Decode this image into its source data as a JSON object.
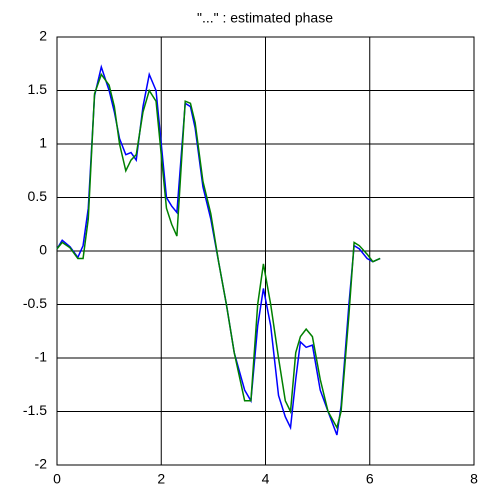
{
  "chart_data": {
    "type": "line",
    "title": "\"...\" : estimated phase",
    "x": [
      0,
      0.1,
      0.25,
      0.4,
      0.5,
      0.6,
      0.72,
      0.85,
      1.0,
      1.1,
      1.2,
      1.32,
      1.42,
      1.52,
      1.65,
      1.77,
      1.9,
      2.0,
      2.1,
      2.2,
      2.3,
      2.46,
      2.56,
      2.65,
      2.8,
      2.95,
      3.1,
      3.25,
      3.4,
      3.6,
      3.72,
      3.85,
      3.96,
      4.1,
      4.25,
      4.38,
      4.48,
      4.58,
      4.67,
      4.78,
      4.9,
      5.05,
      5.2,
      5.37,
      5.45,
      5.6,
      5.7,
      5.8,
      5.95,
      6.06,
      6.2
    ],
    "series": [
      {
        "color": "#0000ff",
        "values": [
          0.02,
          0.1,
          0.04,
          -0.06,
          0.05,
          0.4,
          1.45,
          1.72,
          1.5,
          1.3,
          1.05,
          0.9,
          0.92,
          0.85,
          1.35,
          1.65,
          1.5,
          1.0,
          0.5,
          0.42,
          0.36,
          1.38,
          1.35,
          1.15,
          0.6,
          0.3,
          -0.1,
          -0.5,
          -0.95,
          -1.3,
          -1.4,
          -0.7,
          -0.35,
          -0.7,
          -1.35,
          -1.55,
          -1.65,
          -1.2,
          -0.85,
          -0.9,
          -0.88,
          -1.3,
          -1.5,
          -1.72,
          -1.45,
          -0.5,
          0.05,
          0.02,
          -0.07,
          -0.1,
          -0.07
        ]
      },
      {
        "color": "#008000",
        "values": [
          0.02,
          0.08,
          0.03,
          -0.07,
          -0.07,
          0.3,
          1.47,
          1.65,
          1.55,
          1.35,
          1.0,
          0.75,
          0.85,
          0.9,
          1.3,
          1.5,
          1.4,
          0.9,
          0.4,
          0.25,
          0.14,
          1.4,
          1.38,
          1.2,
          0.65,
          0.35,
          -0.1,
          -0.5,
          -0.95,
          -1.4,
          -1.4,
          -0.5,
          -0.12,
          -0.5,
          -1.0,
          -1.4,
          -1.5,
          -0.95,
          -0.8,
          -0.73,
          -0.8,
          -1.2,
          -1.5,
          -1.65,
          -1.5,
          -0.6,
          0.08,
          0.05,
          -0.03,
          -0.1,
          -0.07
        ]
      }
    ],
    "xlim": [
      0,
      8
    ],
    "xticks": [
      0,
      2,
      4,
      6,
      8
    ],
    "ylim": [
      -2,
      2
    ],
    "yticks": [
      -2,
      -1.5,
      -1,
      -0.5,
      0,
      0.5,
      1,
      1.5,
      2
    ],
    "grid": true
  }
}
